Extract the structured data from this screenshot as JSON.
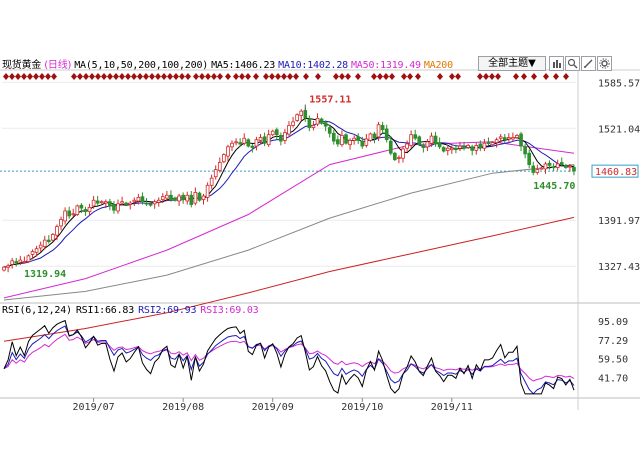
{
  "header": {
    "instrument": "现货黄金",
    "period": "(日线)",
    "ma_params": "MA(5,10,50,200,100,200)",
    "ma5": "MA5:1406.23",
    "ma10": "MA10:1402.28",
    "ma50": "MA50:1319.49",
    "ma200": "MA200",
    "theme_button": "全部主题▼"
  },
  "rsi_header": {
    "params": "RSI(6,12,24)",
    "rsi1": "RSI1:66.83",
    "rsi2": "RSI2:69.93",
    "rsi3": "RSI3:69.03"
  },
  "colors": {
    "up": "#d42a2a",
    "down": "#2d8f2d",
    "ma5": "#000000",
    "ma10": "#1c1cb8",
    "ma50": "#d42ad4",
    "ma100": "#888888",
    "ma200": "#cc2222",
    "current_line": "#33a0c8",
    "marker": "#a01010"
  },
  "icons": [
    "chart-type-icon",
    "zoom-icon",
    "draw-icon",
    "settings-icon"
  ],
  "chart_data": {
    "type": "candlestick",
    "price_axis": {
      "ticks": [
        "1585.57",
        "1521.04",
        "1391.97",
        "1327.43"
      ],
      "current_price": "1460.83",
      "ylim": [
        1280,
        1600
      ]
    },
    "x_labels": [
      "2019/07",
      "2019/08",
      "2019/09",
      "2019/10",
      "2019/11"
    ],
    "annotations": {
      "high": "1557.11",
      "low_left": "1319.94",
      "low_right": "1445.70"
    },
    "candles_close": [
      1326,
      1328,
      1335,
      1332,
      1336,
      1334,
      1342,
      1348,
      1352,
      1357,
      1364,
      1362,
      1372,
      1383,
      1393,
      1405,
      1398,
      1401,
      1412,
      1409,
      1404,
      1410,
      1420,
      1416,
      1418,
      1418,
      1412,
      1406,
      1415,
      1418,
      1414,
      1416,
      1420,
      1424,
      1418,
      1415,
      1413,
      1418,
      1420,
      1425,
      1427,
      1421,
      1420,
      1426,
      1421,
      1427,
      1414,
      1431,
      1420,
      1426,
      1441,
      1451,
      1463,
      1473,
      1484,
      1495,
      1500,
      1502,
      1499,
      1507,
      1496,
      1494,
      1505,
      1508,
      1500,
      1512,
      1517,
      1512,
      1503,
      1515,
      1525,
      1530,
      1540,
      1545,
      1536,
      1522,
      1525,
      1535,
      1528,
      1524,
      1514,
      1503,
      1499,
      1511,
      1500,
      1504,
      1507,
      1504,
      1496,
      1506,
      1513,
      1507,
      1526,
      1519,
      1505,
      1486,
      1477,
      1480,
      1492,
      1499,
      1512,
      1507,
      1498,
      1494,
      1502,
      1510,
      1499,
      1495,
      1489,
      1493,
      1493,
      1491,
      1496,
      1493,
      1497,
      1490,
      1497,
      1494,
      1500,
      1500,
      1501,
      1505,
      1509,
      1505,
      1508,
      1508,
      1511,
      1496,
      1485,
      1470,
      1459,
      1463,
      1465,
      1471,
      1469,
      1466,
      1471,
      1470,
      1466,
      1468,
      1461
    ],
    "rsi_axis": {
      "ticks": [
        "95.09",
        "77.29",
        "59.50",
        "41.70"
      ],
      "ylim": [
        25,
        100
      ]
    },
    "ma_curves": {
      "ma50": {
        "x": [
          0,
          20,
          40,
          60,
          80,
          100,
          120,
          140
        ],
        "y": [
          1283,
          1310,
          1350,
          1400,
          1470,
          1498,
          1502,
          1486
        ]
      },
      "ma100": {
        "x": [
          0,
          20,
          40,
          60,
          80,
          100,
          120,
          140
        ],
        "y": [
          1280,
          1292,
          1315,
          1350,
          1395,
          1430,
          1458,
          1470
        ]
      },
      "ma200": {
        "x": [
          0,
          20,
          40,
          60,
          80,
          100,
          120,
          140
        ],
        "y": [
          1222,
          1240,
          1262,
          1290,
          1320,
          1345,
          1370,
          1396
        ]
      }
    }
  }
}
